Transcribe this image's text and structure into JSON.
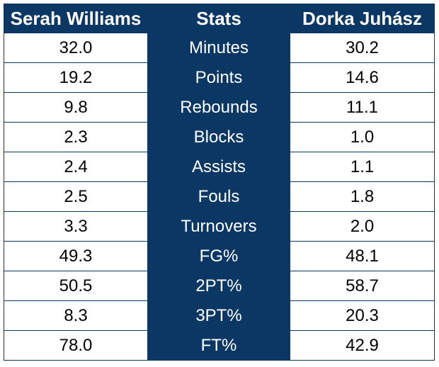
{
  "header": {
    "left_player": "Serah Williams",
    "stats_label": "Stats",
    "right_player": "Dorka Juhász"
  },
  "rows": [
    {
      "left": "32.0",
      "stat": "Minutes",
      "right": "30.2"
    },
    {
      "left": "19.2",
      "stat": "Points",
      "right": "14.6"
    },
    {
      "left": "9.8",
      "stat": "Rebounds",
      "right": "11.1"
    },
    {
      "left": "2.3",
      "stat": "Blocks",
      "right": "1.0"
    },
    {
      "left": "2.4",
      "stat": "Assists",
      "right": "1.1"
    },
    {
      "left": "2.5",
      "stat": "Fouls",
      "right": "1.8"
    },
    {
      "left": "3.3",
      "stat": "Turnovers",
      "right": "2.0"
    },
    {
      "left": "49.3",
      "stat": "FG%",
      "right": "48.1"
    },
    {
      "left": "50.5",
      "stat": "2PT%",
      "right": "58.7"
    },
    {
      "left": "8.3",
      "stat": "3PT%",
      "right": "20.3"
    },
    {
      "left": "78.0",
      "stat": "FT%",
      "right": "42.9"
    }
  ],
  "colors": {
    "header_bg": "#0b3764",
    "header_text": "#ffffff",
    "cell_bg": "#ffffff",
    "cell_text": "#000000"
  }
}
